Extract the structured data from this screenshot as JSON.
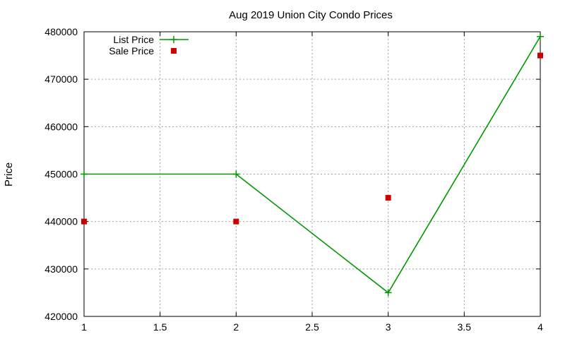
{
  "chart_data": {
    "type": "line",
    "title": "Aug 2019 Union City Condo Prices",
    "xlabel": "",
    "ylabel": "Price",
    "xlim": [
      1,
      4
    ],
    "ylim": [
      420000,
      480000
    ],
    "xticks": [
      1,
      1.5,
      2,
      2.5,
      3,
      3.5,
      4
    ],
    "xtick_labels": [
      "1",
      "1.5",
      "2",
      "2.5",
      "3",
      "3.5",
      "4"
    ],
    "yticks": [
      420000,
      430000,
      440000,
      450000,
      460000,
      470000,
      480000
    ],
    "ytick_labels": [
      "420000",
      "430000",
      "440000",
      "450000",
      "460000",
      "470000",
      "480000"
    ],
    "grid": true,
    "legend_position": "top-left",
    "series": [
      {
        "name": "List Price",
        "style": "linespoints",
        "marker": "plus",
        "color": "#009900",
        "x": [
          1,
          2,
          3,
          4
        ],
        "y": [
          450000,
          450000,
          425000,
          479000
        ]
      },
      {
        "name": "Sale Price",
        "style": "points",
        "marker": "square",
        "color": "#cc0000",
        "x": [
          1,
          2,
          3,
          4
        ],
        "y": [
          440000,
          440000,
          445000,
          475000
        ]
      }
    ]
  }
}
